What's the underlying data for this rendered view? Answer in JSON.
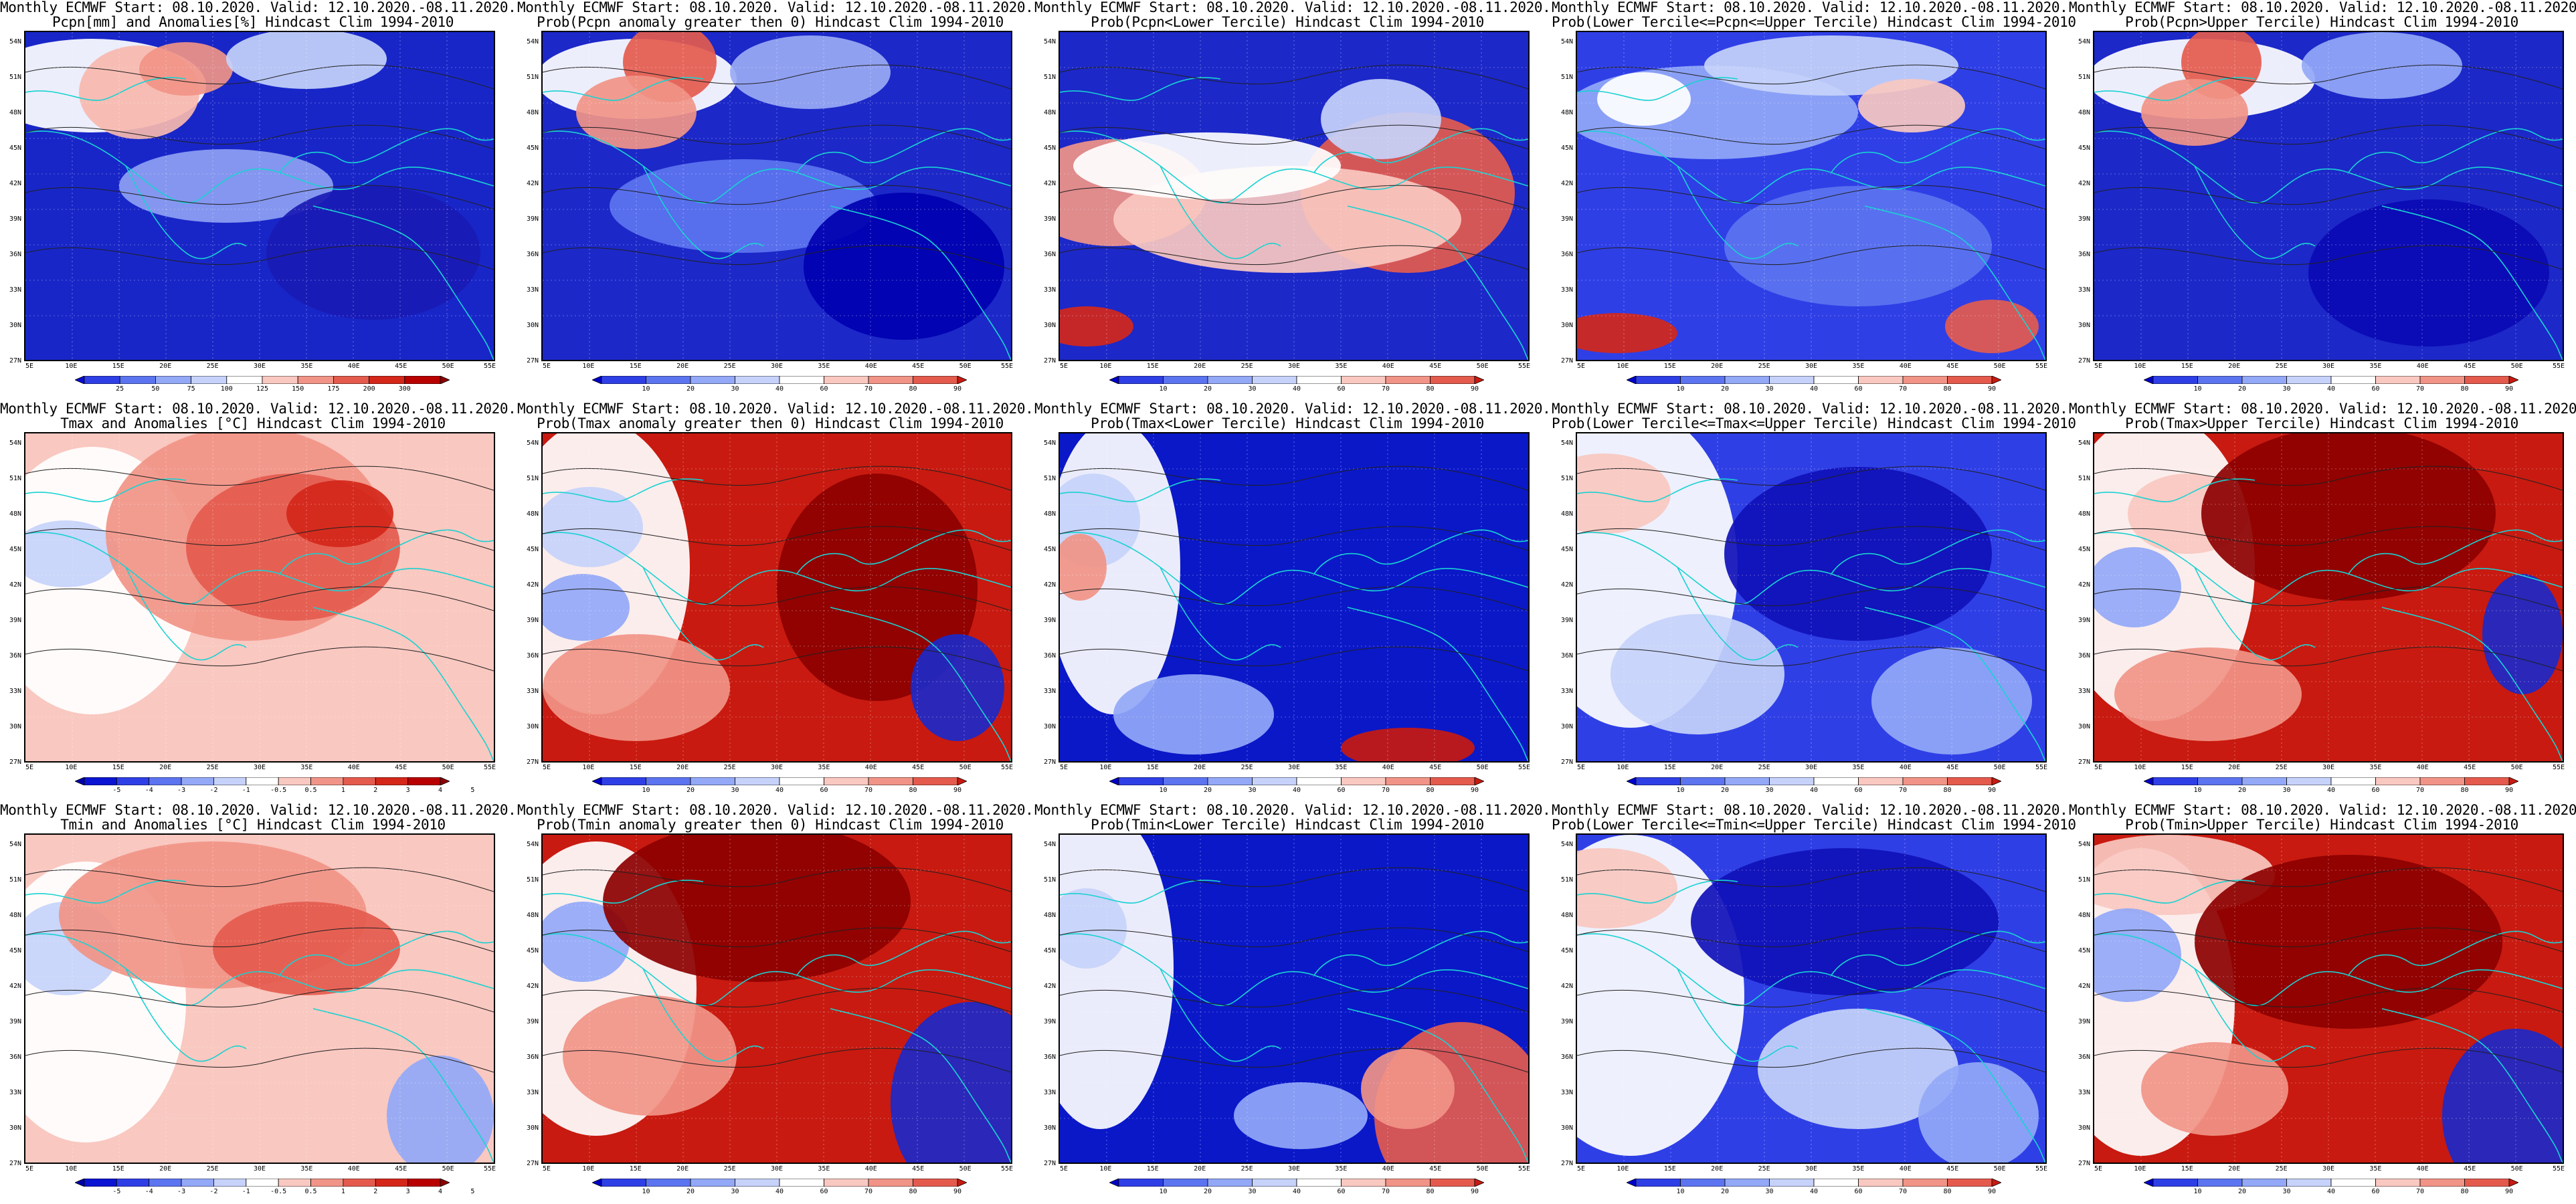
{
  "lat_labels": [
    "54N",
    "51N",
    "48N",
    "45N",
    "42N",
    "39N",
    "36N",
    "33N",
    "30N",
    "27N"
  ],
  "lon_labels": [
    "5E",
    "10E",
    "15E",
    "20E",
    "25E",
    "30E",
    "35E",
    "40E",
    "45E",
    "50E",
    "55E"
  ],
  "colorbars": {
    "anom_pcpn": {
      "labels": [
        "25",
        "50",
        "75",
        "100",
        "125",
        "150",
        "175",
        "200",
        "300"
      ],
      "colors": [
        "#0a0ad2",
        "#2f3fe6",
        "#5c74f0",
        "#93a8f7",
        "#c6d2fa",
        "#ffffff",
        "#f9c8c0",
        "#f19487",
        "#e45b4e",
        "#d4271a",
        "#b80000",
        "#8c0000"
      ]
    },
    "anom_temp": {
      "labels": [
        "-5",
        "-4",
        "-3",
        "-2",
        "-1",
        "-0.5",
        "0.5",
        "1",
        "2",
        "3",
        "4",
        "5"
      ],
      "colors": [
        "#0000a8",
        "#0a14d2",
        "#2f3fe6",
        "#5c74f0",
        "#93a8f7",
        "#c6d2fa",
        "#ffffff",
        "#f9c8c0",
        "#f19487",
        "#e45b4e",
        "#d4271a",
        "#b80000",
        "#8c0000"
      ]
    },
    "prob": {
      "labels": [
        "10",
        "20",
        "30",
        "40",
        "60",
        "70",
        "80",
        "90"
      ],
      "colors": [
        "#0000c8",
        "#2f3fe6",
        "#5c74f0",
        "#93a8f7",
        "#c6d2fa",
        "#ffffff",
        "#f9c8c0",
        "#f19487",
        "#e45b4e",
        "#c81a10"
      ]
    }
  },
  "panels": [
    {
      "title1": "Monthly ECMWF Start: 08.10.2020. Valid: 12.10.2020.-08.11.2020.",
      "title2": "Pcpn[mm] and Anomalies[%] Hindcast Clim 1994-2010",
      "cbar": "anom_pcpn",
      "field": "pcpn_anom"
    },
    {
      "title1": "Monthly ECMWF Start: 08.10.2020. Valid: 12.10.2020.-08.11.2020.",
      "title2": "Prob(Pcpn anomaly greater then 0) Hindcast Clim 1994-2010",
      "cbar": "prob",
      "field": "pcpn_above"
    },
    {
      "title1": "Monthly ECMWF Start: 08.10.2020. Valid: 12.10.2020.-08.11.2020.",
      "title2": "Prob(Pcpn<Lower Tercile) Hindcast Clim 1994-2010",
      "cbar": "prob",
      "field": "pcpn_lower"
    },
    {
      "title1": "Monthly ECMWF Start: 08.10.2020. Valid: 12.10.2020.-08.11.2020.",
      "title2": "Prob(Lower Tercile<=Pcpn<=Upper Tercile) Hindcast Clim 1994-2010",
      "cbar": "prob",
      "field": "pcpn_middle"
    },
    {
      "title1": "Monthly ECMWF Start: 08.10.2020. Valid: 12.10.2020.-08.11.2020.",
      "title2": "Prob(Pcpn>Upper Tercile) Hindcast Clim 1994-2010",
      "cbar": "prob",
      "field": "pcpn_upper"
    },
    {
      "title1": "Monthly ECMWF Start: 08.10.2020. Valid: 12.10.2020.-08.11.2020.",
      "title2": "Tmax and Anomalies [°C] Hindcast Clim 1994-2010",
      "cbar": "anom_temp",
      "field": "tmax_anom"
    },
    {
      "title1": "Monthly ECMWF Start: 08.10.2020. Valid: 12.10.2020.-08.11.2020.",
      "title2": "Prob(Tmax anomaly greater then 0) Hindcast Clim 1994-2010",
      "cbar": "prob",
      "field": "tmax_above"
    },
    {
      "title1": "Monthly ECMWF Start: 08.10.2020. Valid: 12.10.2020.-08.11.2020.",
      "title2": "Prob(Tmax<Lower Tercile) Hindcast Clim 1994-2010",
      "cbar": "prob",
      "field": "tmax_lower"
    },
    {
      "title1": "Monthly ECMWF Start: 08.10.2020. Valid: 12.10.2020.-08.11.2020.",
      "title2": "Prob(Lower Tercile<=Tmax<=Upper Tercile) Hindcast Clim 1994-2010",
      "cbar": "prob",
      "field": "tmax_middle"
    },
    {
      "title1": "Monthly ECMWF Start: 08.10.2020. Valid: 12.10.2020.-08.11.2020.",
      "title2": "Prob(Tmax>Upper Tercile) Hindcast Clim 1994-2010",
      "cbar": "prob",
      "field": "tmax_upper"
    },
    {
      "title1": "Monthly ECMWF Start: 08.10.2020. Valid: 12.10.2020.-08.11.2020.",
      "title2": "Tmin and Anomalies [°C] Hindcast Clim 1994-2010",
      "cbar": "anom_temp",
      "field": "tmin_anom"
    },
    {
      "title1": "Monthly ECMWF Start: 08.10.2020. Valid: 12.10.2020.-08.11.2020.",
      "title2": "Prob(Tmin anomaly greater then 0) Hindcast Clim 1994-2010",
      "cbar": "prob",
      "field": "tmin_above"
    },
    {
      "title1": "Monthly ECMWF Start: 08.10.2020. Valid: 12.10.2020.-08.11.2020.",
      "title2": "Prob(Tmin<Lower Tercile) Hindcast Clim 1994-2010",
      "cbar": "prob",
      "field": "tmin_lower"
    },
    {
      "title1": "Monthly ECMWF Start: 08.10.2020. Valid: 12.10.2020.-08.11.2020.",
      "title2": "Prob(Lower Tercile<=Tmin<=Upper Tercile) Hindcast Clim 1994-2010",
      "cbar": "prob",
      "field": "tmin_middle"
    },
    {
      "title1": "Monthly ECMWF Start: 08.10.2020. Valid: 12.10.2020.-08.11.2020.",
      "title2": "Prob(Tmin>Upper Tercile) Hindcast Clim 1994-2010",
      "cbar": "prob",
      "field": "tmin_upper"
    }
  ]
}
